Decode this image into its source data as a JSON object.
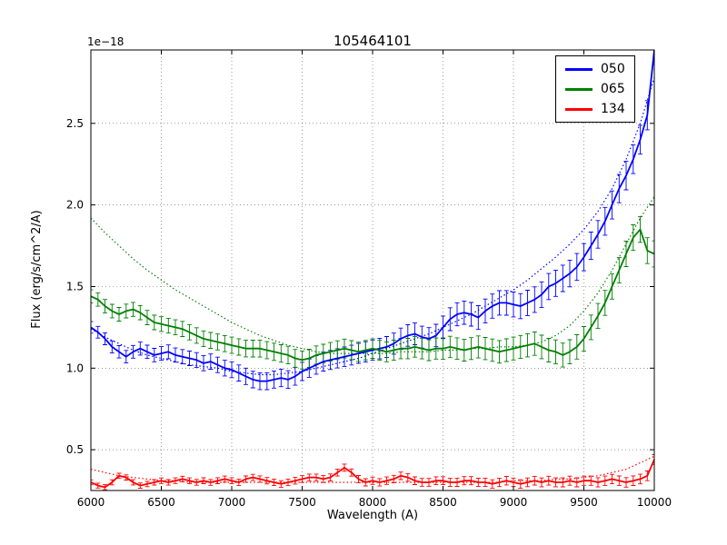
{
  "chart_data": {
    "type": "line",
    "title": "105464101",
    "offset_text": "1e−18",
    "xlabel": "Wavelength (A)",
    "ylabel": "Flux (erg/s/cm^2/A)",
    "xlim": [
      6000,
      10000
    ],
    "ylim": [
      0.25,
      2.95
    ],
    "xticks": [
      6000,
      6500,
      7000,
      7500,
      8000,
      8500,
      9000,
      9500,
      10000
    ],
    "yticks": [
      0.5,
      1.0,
      1.5,
      2.0,
      2.5
    ],
    "grid": true,
    "legend_position": "upper right",
    "x_start": 6000,
    "x_step": 50,
    "fit_x_step": 100,
    "series": [
      {
        "name": "050",
        "color": "#0000ff",
        "err_start": 0.035,
        "err_end": 0.09,
        "values": [
          1.25,
          1.22,
          1.18,
          1.13,
          1.1,
          1.07,
          1.1,
          1.12,
          1.1,
          1.08,
          1.09,
          1.1,
          1.08,
          1.07,
          1.06,
          1.05,
          1.03,
          1.04,
          1.02,
          1.0,
          0.99,
          0.97,
          0.95,
          0.93,
          0.92,
          0.92,
          0.93,
          0.94,
          0.93,
          0.95,
          0.98,
          1.0,
          1.02,
          1.04,
          1.05,
          1.06,
          1.07,
          1.08,
          1.09,
          1.1,
          1.11,
          1.12,
          1.13,
          1.15,
          1.18,
          1.2,
          1.21,
          1.19,
          1.18,
          1.2,
          1.25,
          1.3,
          1.33,
          1.34,
          1.33,
          1.31,
          1.35,
          1.38,
          1.4,
          1.4,
          1.39,
          1.38,
          1.4,
          1.42,
          1.45,
          1.5,
          1.52,
          1.55,
          1.58,
          1.62,
          1.68,
          1.75,
          1.82,
          1.9,
          2.0,
          2.1,
          2.18,
          2.28,
          2.4,
          2.55,
          2.95
        ],
        "fit_values": [
          1.24,
          1.19,
          1.15,
          1.11,
          1.08,
          1.06,
          1.04,
          1.02,
          1.01,
          1.0,
          0.98,
          0.97,
          0.96,
          0.96,
          0.97,
          0.98,
          1.0,
          1.02,
          1.04,
          1.06,
          1.09,
          1.12,
          1.15,
          1.18,
          1.21,
          1.25,
          1.29,
          1.33,
          1.38,
          1.43,
          1.48,
          1.54,
          1.61,
          1.68,
          1.76,
          1.85,
          1.96,
          2.1,
          2.28,
          2.5,
          2.78
        ]
      },
      {
        "name": "065",
        "color": "#008000",
        "err_start": 0.04,
        "err_end": 0.08,
        "values": [
          1.44,
          1.42,
          1.38,
          1.35,
          1.33,
          1.35,
          1.36,
          1.34,
          1.31,
          1.28,
          1.27,
          1.26,
          1.25,
          1.24,
          1.22,
          1.2,
          1.18,
          1.17,
          1.16,
          1.15,
          1.14,
          1.13,
          1.12,
          1.12,
          1.12,
          1.11,
          1.1,
          1.09,
          1.08,
          1.06,
          1.05,
          1.06,
          1.08,
          1.09,
          1.1,
          1.11,
          1.12,
          1.11,
          1.1,
          1.11,
          1.12,
          1.11,
          1.1,
          1.11,
          1.12,
          1.12,
          1.13,
          1.12,
          1.11,
          1.12,
          1.12,
          1.13,
          1.12,
          1.11,
          1.12,
          1.13,
          1.12,
          1.11,
          1.1,
          1.11,
          1.12,
          1.13,
          1.14,
          1.15,
          1.13,
          1.11,
          1.1,
          1.08,
          1.1,
          1.13,
          1.18,
          1.25,
          1.32,
          1.4,
          1.5,
          1.6,
          1.7,
          1.8,
          1.85,
          1.72,
          1.7
        ],
        "fit_values": [
          1.92,
          1.83,
          1.75,
          1.67,
          1.6,
          1.54,
          1.48,
          1.43,
          1.38,
          1.33,
          1.28,
          1.24,
          1.2,
          1.17,
          1.14,
          1.12,
          1.1,
          1.09,
          1.09,
          1.09,
          1.09,
          1.09,
          1.1,
          1.1,
          1.1,
          1.11,
          1.11,
          1.12,
          1.12,
          1.13,
          1.13,
          1.14,
          1.16,
          1.2,
          1.26,
          1.35,
          1.46,
          1.6,
          1.76,
          1.92,
          2.05
        ]
      },
      {
        "name": "134",
        "color": "#ff0000",
        "err_start": 0.015,
        "err_end": 0.03,
        "values": [
          0.3,
          0.28,
          0.27,
          0.3,
          0.34,
          0.33,
          0.3,
          0.28,
          0.29,
          0.3,
          0.31,
          0.3,
          0.31,
          0.32,
          0.31,
          0.3,
          0.31,
          0.3,
          0.31,
          0.32,
          0.31,
          0.3,
          0.32,
          0.33,
          0.32,
          0.31,
          0.3,
          0.29,
          0.3,
          0.31,
          0.32,
          0.33,
          0.33,
          0.32,
          0.33,
          0.36,
          0.39,
          0.36,
          0.32,
          0.3,
          0.31,
          0.3,
          0.31,
          0.32,
          0.34,
          0.33,
          0.31,
          0.3,
          0.3,
          0.31,
          0.31,
          0.3,
          0.3,
          0.31,
          0.31,
          0.3,
          0.3,
          0.29,
          0.3,
          0.31,
          0.3,
          0.29,
          0.3,
          0.31,
          0.3,
          0.31,
          0.3,
          0.3,
          0.31,
          0.3,
          0.31,
          0.31,
          0.3,
          0.31,
          0.32,
          0.31,
          0.3,
          0.31,
          0.32,
          0.34,
          0.44
        ],
        "fit_values": [
          0.38,
          0.36,
          0.34,
          0.33,
          0.32,
          0.31,
          0.31,
          0.3,
          0.3,
          0.3,
          0.3,
          0.3,
          0.3,
          0.3,
          0.3,
          0.3,
          0.3,
          0.3,
          0.3,
          0.3,
          0.3,
          0.3,
          0.3,
          0.3,
          0.3,
          0.3,
          0.3,
          0.3,
          0.3,
          0.3,
          0.31,
          0.31,
          0.31,
          0.32,
          0.32,
          0.33,
          0.34,
          0.36,
          0.38,
          0.42,
          0.46
        ]
      }
    ]
  }
}
